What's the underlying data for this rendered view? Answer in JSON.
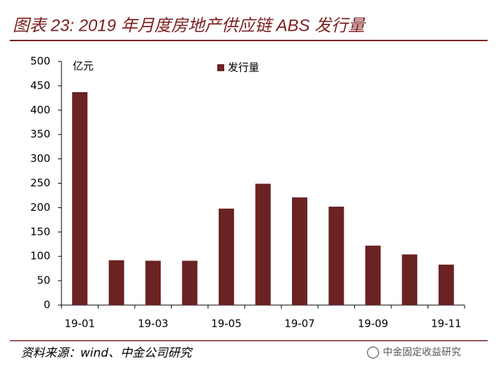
{
  "chart_data": {
    "type": "bar",
    "title": "图表 23: 2019 年月度房地产供应链 ABS 发行量",
    "y_label": "亿元",
    "categories": [
      "19-01",
      null,
      "19-03",
      null,
      "19-05",
      null,
      "19-07",
      null,
      "19-09",
      null,
      "19-11"
    ],
    "series": [
      {
        "name": "发行量",
        "color": "#6b2222",
        "values": [
          437,
          92,
          91,
          91,
          198,
          249,
          221,
          202,
          122,
          104,
          83
        ]
      }
    ],
    "ylim": [
      0,
      500
    ],
    "yticks": [
      0,
      50,
      100,
      150,
      200,
      250,
      300,
      350,
      400,
      450,
      500
    ],
    "grid": false
  },
  "footer": {
    "source": "资料来源：wind、中金公司研究",
    "watermark": "中金固定收益研究"
  }
}
